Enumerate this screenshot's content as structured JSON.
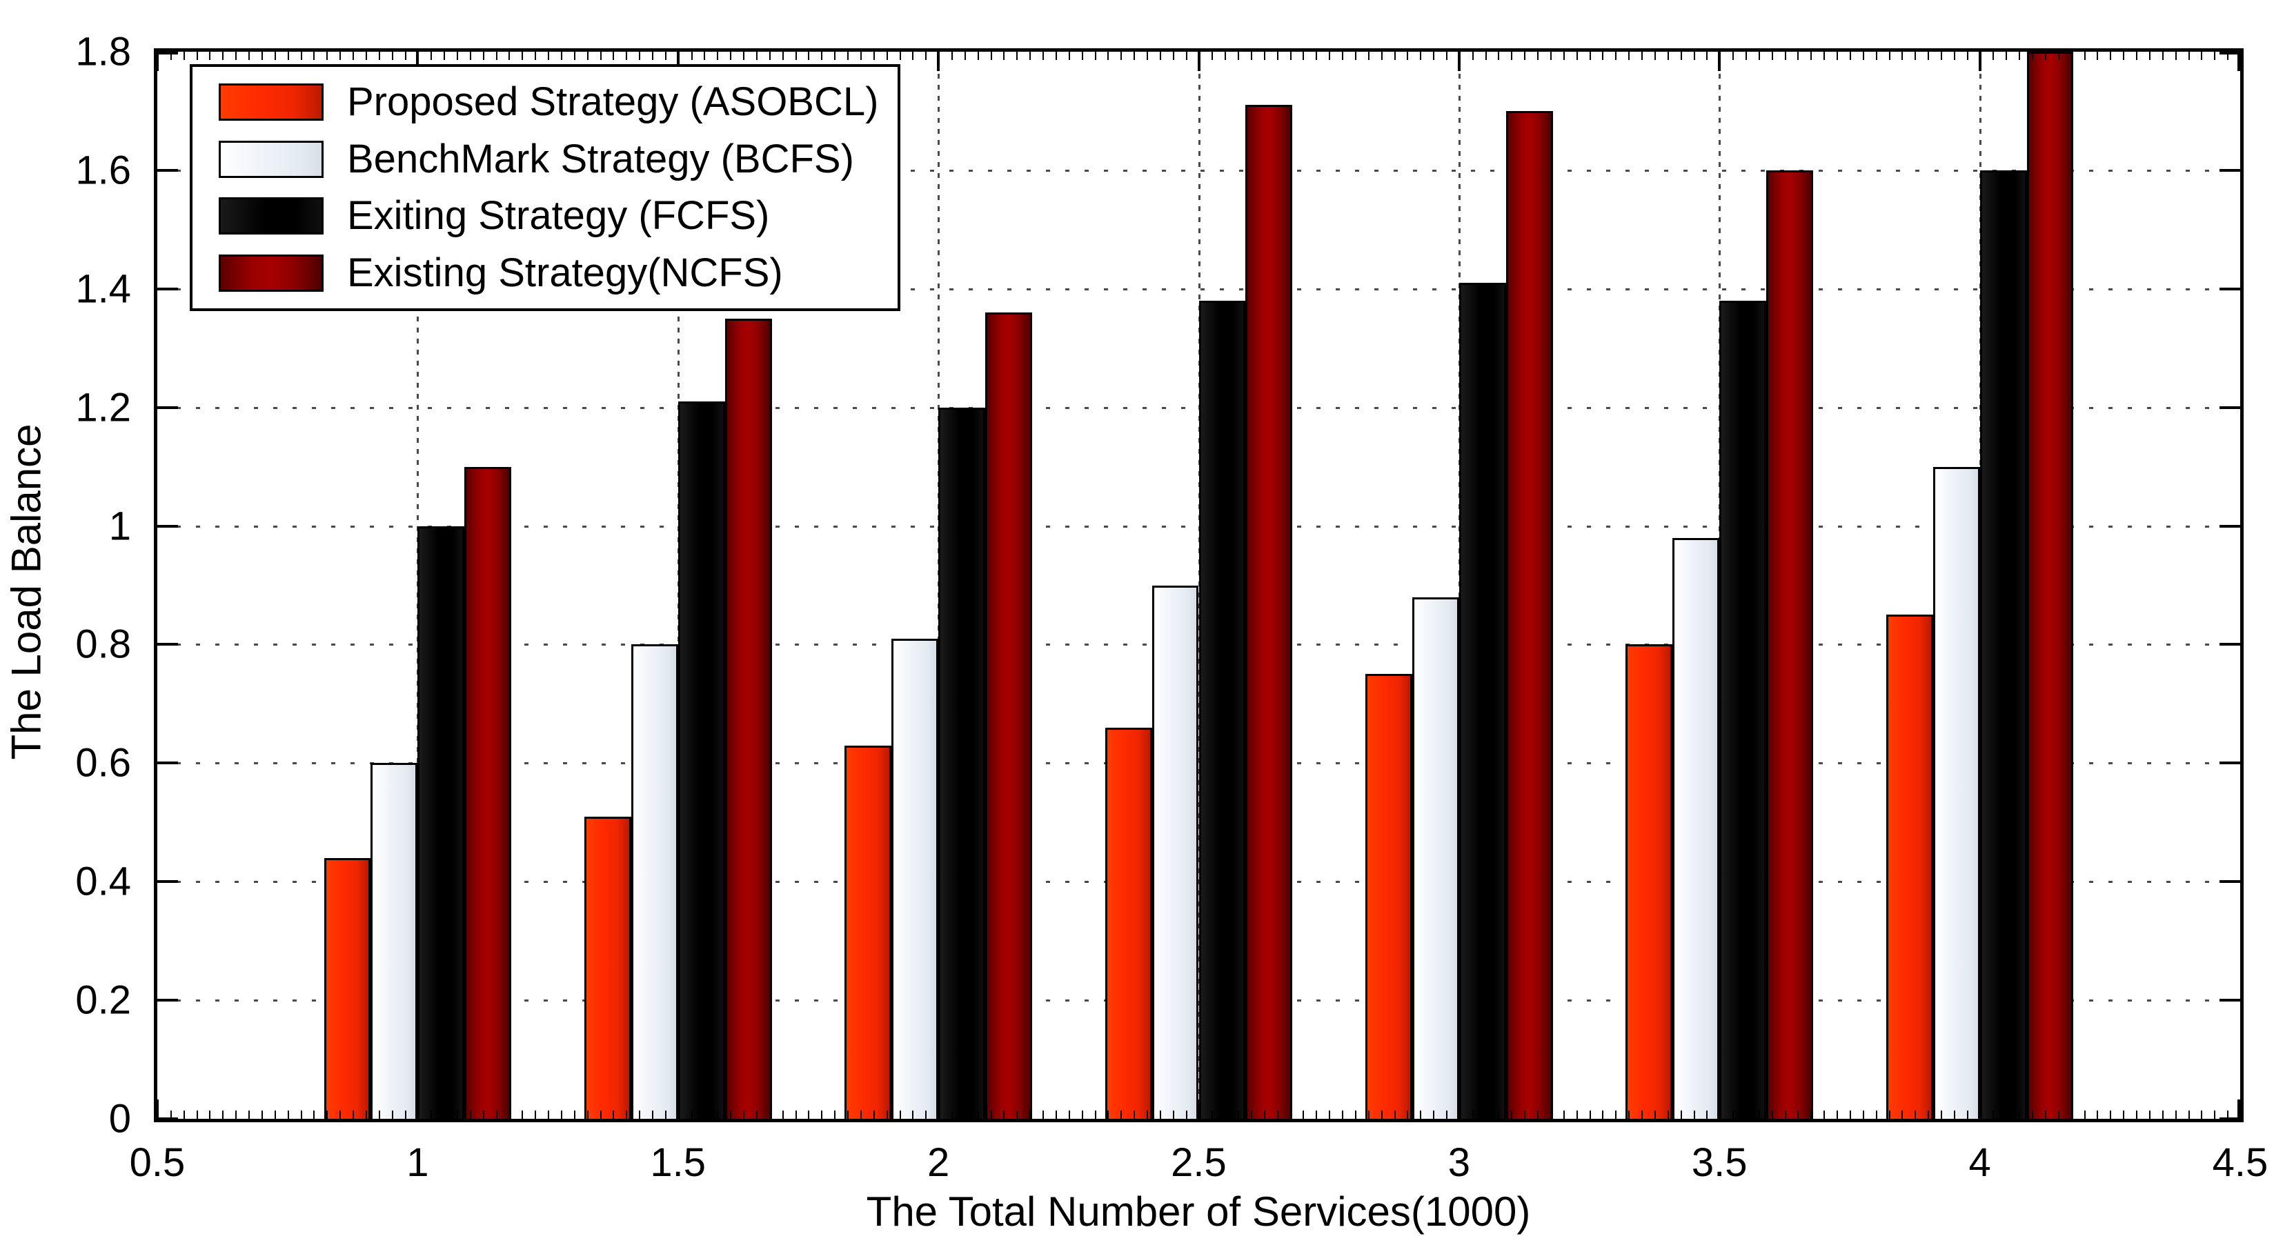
{
  "chart_data": {
    "type": "bar",
    "title": "",
    "xlabel": "The Total Number of Services(1000)",
    "ylabel": "The Load Balance",
    "xlim": [
      0.5,
      4.5
    ],
    "ylim": [
      0,
      1.8
    ],
    "x_tick_labels": [
      "0.5",
      "1",
      "1.5",
      "2",
      "2.5",
      "3",
      "3.5",
      "4",
      "4.5"
    ],
    "y_tick_labels": [
      "0",
      "0.2",
      "0.4",
      "0.6",
      "0.8",
      "1",
      "1.2",
      "1.4",
      "1.6",
      "1.8"
    ],
    "grid": true,
    "legend_position": "top-left",
    "categories": [
      1,
      1.5,
      2,
      2.5,
      3,
      3.5,
      4
    ],
    "series": [
      {
        "name": "Proposed Strategy (ASOBCL)",
        "color": "#fa2b00",
        "values": [
          0.44,
          0.51,
          0.63,
          0.66,
          0.75,
          0.8,
          0.85
        ]
      },
      {
        "name": "BenchMark Strategy (BCFS)",
        "color": "#f0f4f8",
        "values": [
          0.6,
          0.8,
          0.81,
          0.9,
          0.88,
          0.98,
          1.1
        ]
      },
      {
        "name": "Exiting Strategy (FCFS)",
        "color": "#000000",
        "values": [
          1.0,
          1.21,
          1.2,
          1.38,
          1.41,
          1.38,
          1.6
        ]
      },
      {
        "name": "Existing Strategy(NCFS)",
        "color": "#9a0000",
        "values": [
          1.1,
          1.35,
          1.36,
          1.71,
          1.7,
          1.6,
          1.8
        ]
      }
    ]
  }
}
